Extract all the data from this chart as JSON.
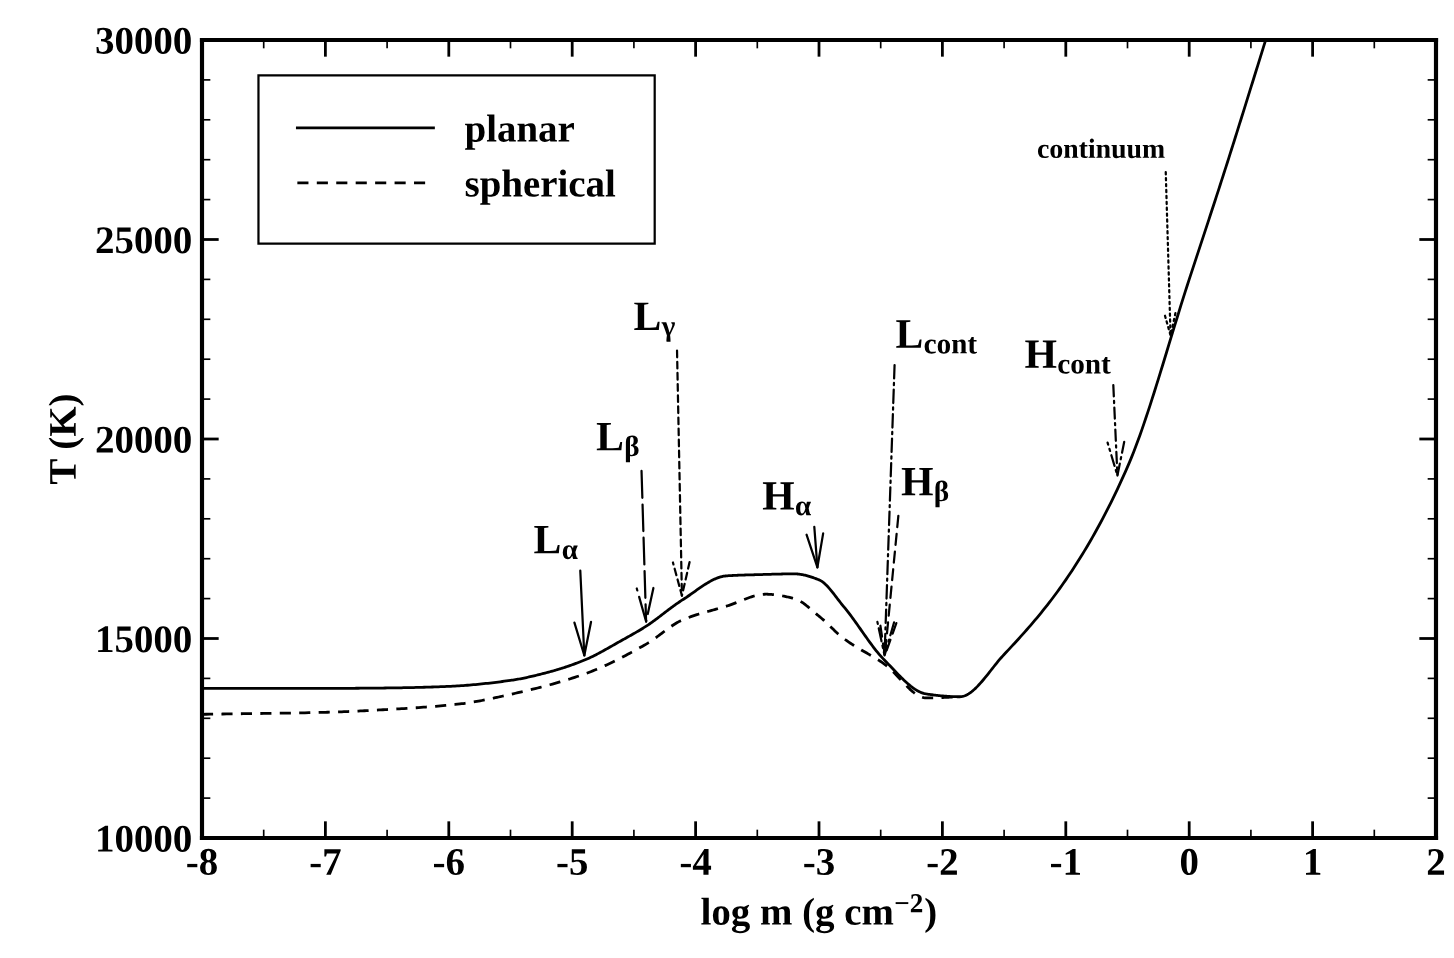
{
  "chart_data": {
    "type": "line",
    "xlabel": "log m (g cm$^{−2}$)",
    "ylabel": "T (K)",
    "xlim": [
      -8,
      2
    ],
    "ylim": [
      10000,
      30000
    ],
    "xticks": [
      -8,
      -7,
      -6,
      -5,
      -4,
      -3,
      -2,
      -1,
      0,
      1,
      2
    ],
    "yticks": [
      10000,
      15000,
      20000,
      25000,
      30000
    ],
    "legend": "top left",
    "grid": false,
    "series": [
      {
        "name": "planar",
        "color": "#000000",
        "line_style": "solid",
        "x": [
          -8,
          -7,
          -6.5,
          -6,
          -5.5,
          -5.2,
          -4.9,
          -4.6,
          -4.4,
          -4.11,
          -3.75,
          -3.5,
          -3.2,
          -3.0,
          -2.8,
          -2.47,
          -2.13,
          -1.86,
          -1.5,
          -1,
          -0.5,
          0,
          0.3,
          0.62
        ],
        "values": [
          13750,
          13750,
          13760,
          13800,
          13950,
          14150,
          14460,
          14950,
          15310,
          15960,
          16570,
          16600,
          16620,
          16470,
          15800,
          14460,
          13610,
          13540,
          14600,
          16470,
          19300,
          24000,
          26840,
          30000
        ]
      },
      {
        "name": "spherical",
        "color": "#000000",
        "line_style": "dashed",
        "x": [
          -8,
          -7,
          -6.5,
          -5.91,
          -5.5,
          -4.9,
          -4.4,
          -4.11,
          -3.75,
          -3.43,
          -3.2,
          -3.0,
          -2.8,
          -2.47,
          -2.13,
          -1.86
        ],
        "values": [
          13100,
          13150,
          13220,
          13360,
          13600,
          14110,
          14860,
          15460,
          15810,
          16110,
          16000,
          15560,
          15000,
          14360,
          13510,
          13540
        ]
      }
    ],
    "annotations": [
      {
        "text": "L$_{α}$",
        "x": -4.9,
        "y": 14460
      },
      {
        "text": "L$_{β}$",
        "x": -4.4,
        "y": 15310
      },
      {
        "text": "L$_{γ}$",
        "x": -4.11,
        "y": 15960
      },
      {
        "text": "H$_{α}$",
        "x": -3.01,
        "y": 16670
      },
      {
        "text": "L$_{cont}$",
        "x": -2.47,
        "y": 14460
      },
      {
        "text": "H$_{β}$",
        "x": -2.47,
        "y": 14460
      },
      {
        "text": "H$_{cont}$",
        "x": -0.58,
        "y": 18970
      },
      {
        "text": "continuum",
        "x": -0.15,
        "y": 22480
      }
    ]
  }
}
